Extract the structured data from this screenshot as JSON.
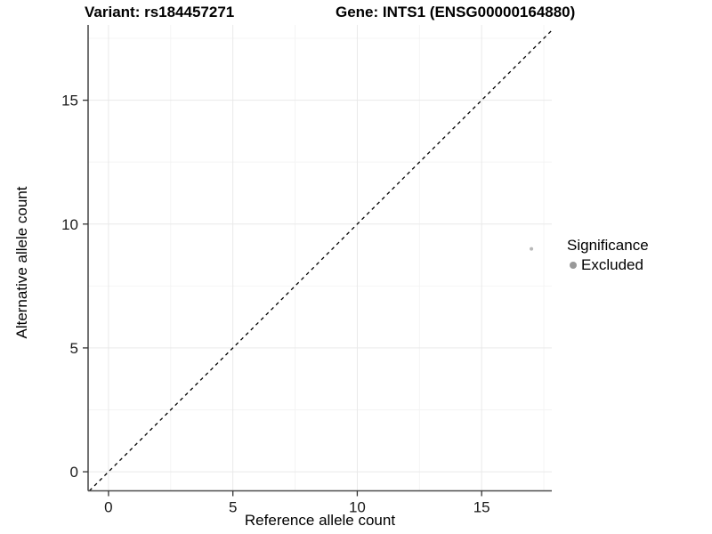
{
  "header": {
    "variant_title": "Variant: rs184457271",
    "gene_title": "Gene: INTS1 (ENSG00000164880)"
  },
  "chart_data": {
    "type": "scatter",
    "title": "Variant: rs184457271  |  Gene: INTS1 (ENSG00000164880)",
    "xlabel": "Reference allele count",
    "ylabel": "Alternative allele count",
    "xlim": [
      -0.82,
      17.82
    ],
    "ylim": [
      -0.77,
      18.04
    ],
    "x_ticks": [
      0,
      5,
      10,
      15
    ],
    "y_ticks": [
      0,
      5,
      10,
      15
    ],
    "grid": "major+minor",
    "minor_step": 2.5,
    "identity_line": {
      "equation": "y = x",
      "style": "dashed",
      "color": "#000000"
    },
    "points": [
      {
        "x": 17,
        "y": 9,
        "series": "Excluded",
        "color": "#b8b8b8",
        "radius": 2
      }
    ],
    "legend": {
      "title": "Significance",
      "position": "right",
      "items": [
        {
          "label": "Excluded",
          "color": "#999999"
        }
      ]
    }
  },
  "colors": {
    "background": "#ffffff",
    "axis_line": "#4d4d4d",
    "tick_mark": "#333333",
    "tick_label": "#1a1a1a",
    "grid_major": "#e9e9e9",
    "grid_minor": "#f4f4f4"
  }
}
